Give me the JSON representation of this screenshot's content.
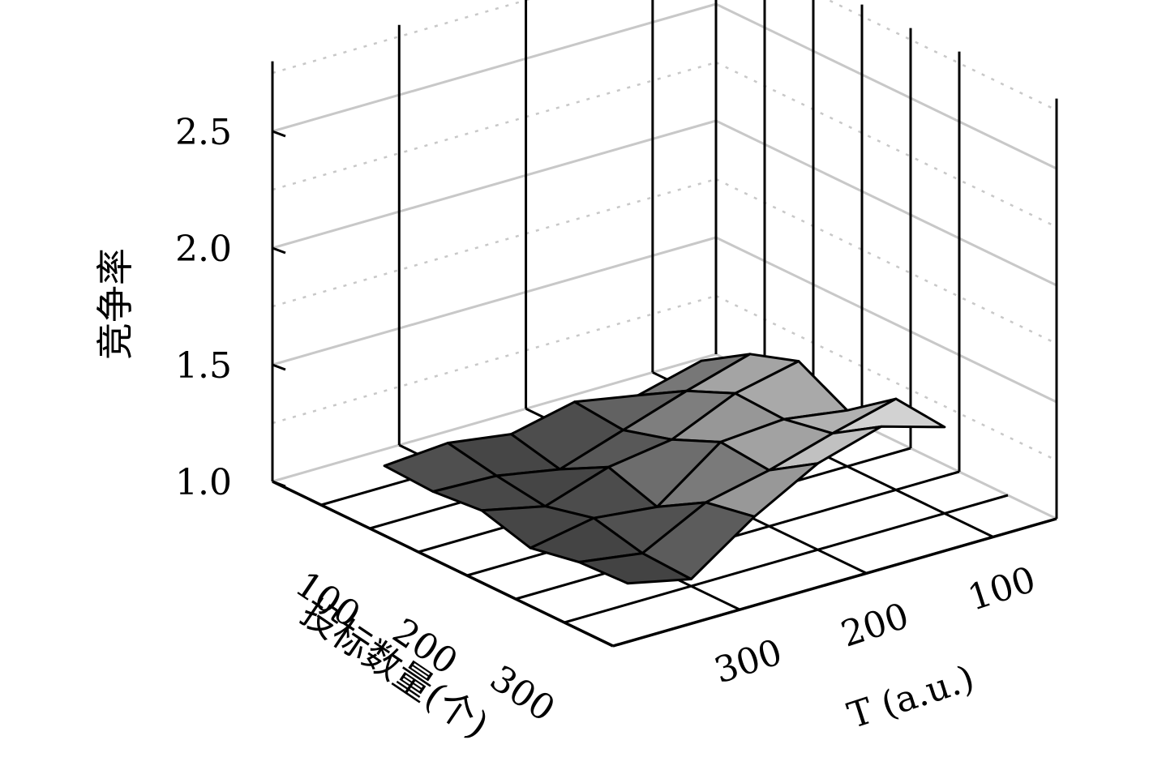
{
  "chart_data": {
    "type": "surface3d",
    "title": "",
    "zlabel": "竞争率",
    "xlabel": "投标数量(个)",
    "ylabel": "T (a.u.)",
    "zlim": [
      1.0,
      2.5
    ],
    "z_ticks": [
      "1.0",
      "1.5",
      "2.0",
      "2.5"
    ],
    "x_ticks": [
      "100",
      "200",
      "300"
    ],
    "y_ticks": [
      "100",
      "200",
      "300"
    ],
    "x": [
      50,
      100,
      150,
      200,
      250,
      300
    ],
    "y": [
      300,
      250,
      200,
      150,
      100,
      50
    ],
    "z": [
      [
        1.15,
        1.28,
        1.35,
        1.24,
        1.39,
        1.37
      ],
      [
        1.08,
        1.2,
        1.29,
        1.28,
        1.32,
        1.45
      ],
      [
        1.13,
        1.11,
        1.17,
        1.26,
        1.24,
        1.37
      ],
      [
        1.07,
        1.02,
        1.13,
        1.06,
        1.18,
        1.22
      ],
      [
        1.11,
        1.07,
        1.04,
        1.09,
        1.04,
        1.03
      ],
      [
        1.09,
        1.08,
        1.1,
        1.04,
        1.08,
        1.09
      ]
    ],
    "grid": true,
    "colormap": "grayscale"
  }
}
